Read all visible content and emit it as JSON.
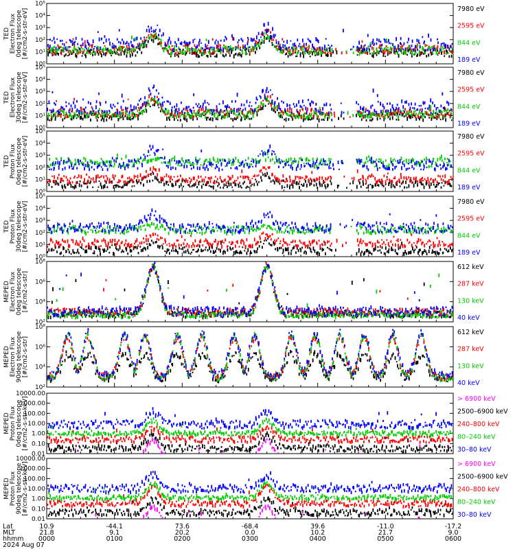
{
  "chart_data": [
    {
      "type": "scatter",
      "ylabel": [
        "TED",
        "Electron Flux",
        "0deg telescope",
        "[#/cm2-s-str-eV]"
      ],
      "yscale": "log",
      "ylim": [
        1,
        100000
      ],
      "yticks": [
        "10⁰",
        "10¹",
        "10²",
        "10³",
        "10⁴",
        "10⁵"
      ],
      "series": [
        {
          "name": "7980 eV",
          "color": "#000000",
          "baseline": 0.9,
          "noise": 0.3,
          "peak": 2.2
        },
        {
          "name": "2595 eV",
          "color": "#ff0000",
          "baseline": 1.2,
          "noise": 0.35,
          "peak": 2.6
        },
        {
          "name": "844 eV",
          "color": "#00cc00",
          "baseline": 1.1,
          "noise": 0.3,
          "peak": 2.4
        },
        {
          "name": "189 eV",
          "color": "#0000ff",
          "baseline": 1.6,
          "noise": 0.5,
          "peak": 3.0
        }
      ]
    },
    {
      "type": "scatter",
      "ylabel": [
        "TED",
        "Electron Flux",
        "30deg telescope",
        "[#/cm2-s-str-eV]"
      ],
      "yscale": "log",
      "ylim": [
        1,
        100000
      ],
      "yticks": [
        "10⁰",
        "10¹",
        "10²",
        "10³",
        "10⁴",
        "10⁵"
      ],
      "series": [
        {
          "name": "7980 eV",
          "color": "#000000",
          "baseline": 0.9,
          "noise": 0.3,
          "peak": 2.1
        },
        {
          "name": "2595 eV",
          "color": "#ff0000",
          "baseline": 1.2,
          "noise": 0.35,
          "peak": 2.5
        },
        {
          "name": "844 eV",
          "color": "#00cc00",
          "baseline": 1.1,
          "noise": 0.3,
          "peak": 2.3
        },
        {
          "name": "189 eV",
          "color": "#0000ff",
          "baseline": 1.7,
          "noise": 0.5,
          "peak": 3.0
        }
      ]
    },
    {
      "type": "scatter",
      "ylabel": [
        "TED",
        "Proton Flux",
        "0deg telescope",
        "[#/cm2-s-str-eV]"
      ],
      "yscale": "log",
      "ylim": [
        1,
        100000
      ],
      "yticks": [
        "10⁰",
        "10¹",
        "10²",
        "10³",
        "10⁴",
        "10⁵"
      ],
      "series": [
        {
          "name": "7980 eV",
          "color": "#000000",
          "baseline": 0.6,
          "noise": 0.3,
          "peak": 1.2
        },
        {
          "name": "2595 eV",
          "color": "#ff0000",
          "baseline": 1.0,
          "noise": 0.3,
          "peak": 1.8
        },
        {
          "name": "844 eV",
          "color": "#00cc00",
          "baseline": 2.4,
          "noise": 0.35,
          "peak": 2.9
        },
        {
          "name": "189 eV",
          "color": "#0000ff",
          "baseline": 2.2,
          "noise": 0.4,
          "peak": 3.5
        }
      ]
    },
    {
      "type": "scatter",
      "ylabel": [
        "TED",
        "Proton Flux",
        "30deg telescope",
        "[#/cm2-s-str-eV]"
      ],
      "yscale": "log",
      "ylim": [
        1,
        100000
      ],
      "yticks": [
        "10⁰",
        "10¹",
        "10²",
        "10³",
        "10⁴",
        "10⁵"
      ],
      "series": [
        {
          "name": "7980 eV",
          "color": "#000000",
          "baseline": 0.5,
          "noise": 0.3,
          "peak": 1.2
        },
        {
          "name": "2595 eV",
          "color": "#ff0000",
          "baseline": 1.1,
          "noise": 0.3,
          "peak": 1.8
        },
        {
          "name": "844 eV",
          "color": "#00cc00",
          "baseline": 2.2,
          "noise": 0.3,
          "peak": 2.6
        },
        {
          "name": "189 eV",
          "color": "#0000ff",
          "baseline": 2.4,
          "noise": 0.4,
          "peak": 3.6
        }
      ]
    },
    {
      "type": "scatter",
      "ylabel": [
        "MEPED",
        "Electron Flux",
        "0deg telescope",
        "[#/cm2-s-str]"
      ],
      "yscale": "log",
      "ylim": [
        10,
        100000000
      ],
      "yticks": [
        "10²",
        "10⁴",
        "10⁶",
        "10⁸"
      ],
      "series": [
        {
          "name": "612 keV",
          "color": "#000000",
          "baseline": 1.9,
          "noise": 0.4,
          "peak": 7.3
        },
        {
          "name": "287 keV",
          "color": "#ff0000",
          "baseline": 2.1,
          "noise": 0.4,
          "peak": 7.4
        },
        {
          "name": "130 keV",
          "color": "#00cc00",
          "baseline": 1.8,
          "noise": 0.3,
          "peak": 7.5
        },
        {
          "name": "40 keV",
          "color": "#0000ff",
          "baseline": 2.2,
          "noise": 0.5,
          "peak": 7.6
        }
      ]
    },
    {
      "type": "scatter",
      "ylabel": [
        "MEPED",
        "Electron Flux",
        "90deg telescope",
        "[#/cm2-s-str]"
      ],
      "yscale": "log",
      "ylim": [
        10,
        100000000
      ],
      "yticks": [
        "10²",
        "10⁴",
        "10⁶",
        "10⁸"
      ],
      "series": [
        {
          "name": "612 keV",
          "color": "#000000",
          "baseline": 2.0,
          "noise": 0.4,
          "peak": 4.8
        },
        {
          "name": "287 keV",
          "color": "#ff0000",
          "baseline": 2.2,
          "noise": 0.4,
          "peak": 6.8
        },
        {
          "name": "130 keV",
          "color": "#00cc00",
          "baseline": 2.0,
          "noise": 0.3,
          "peak": 7.0
        },
        {
          "name": "40 keV",
          "color": "#0000ff",
          "baseline": 2.3,
          "noise": 0.5,
          "peak": 7.2
        }
      ]
    },
    {
      "type": "scatter",
      "ylabel": [
        "MEPED",
        "Proton Flux",
        "0deg telescope",
        "[#/cm2-s-str-keV]"
      ],
      "yscale": "log",
      "ylim": [
        0.01,
        10000
      ],
      "yticks": [
        "0.01",
        "0.10",
        "1.00",
        "10.00",
        "100.00",
        "1000.00",
        "10000.00"
      ],
      "series": [
        {
          "name": "> 6900 keV",
          "color": "#ff00ff",
          "baseline": -2.5,
          "noise": 0.2,
          "peak": -0.7
        },
        {
          "name": "2500–6900 keV",
          "color": "#000000",
          "baseline": -1.5,
          "noise": 0.3,
          "peak": -0.2
        },
        {
          "name": "240–800 keV",
          "color": "#ff0000",
          "baseline": -0.6,
          "noise": 0.3,
          "peak": 0.6
        },
        {
          "name": "80–240 keV",
          "color": "#00cc00",
          "baseline": 0.0,
          "noise": 0.2,
          "peak": 1.3
        },
        {
          "name": "30–80 keV",
          "color": "#0000ff",
          "baseline": 0.9,
          "noise": 0.4,
          "peak": 2.2
        }
      ]
    },
    {
      "type": "scatter",
      "ylabel": [
        "MEPED",
        "Proton Flux",
        "90deg telescope",
        "[#/cm2-s-str-keV]"
      ],
      "yscale": "log",
      "ylim": [
        0.01,
        10000
      ],
      "yticks": [
        "0.01",
        "0.10",
        "1.00",
        "10.00",
        "100.00",
        "1000.00",
        "10000.00"
      ],
      "series": [
        {
          "name": "> 6900 keV",
          "color": "#ff00ff",
          "baseline": -2.5,
          "noise": 0.2,
          "peak": -0.8
        },
        {
          "name": "2500–6900 keV",
          "color": "#000000",
          "baseline": -1.4,
          "noise": 0.3,
          "peak": -0.1
        },
        {
          "name": "240–800 keV",
          "color": "#ff0000",
          "baseline": -0.5,
          "noise": 0.3,
          "peak": 1.2
        },
        {
          "name": "80–240 keV",
          "color": "#00cc00",
          "baseline": 0.1,
          "noise": 0.2,
          "peak": 1.5
        },
        {
          "name": "30–80 keV",
          "color": "#0000ff",
          "baseline": 1.0,
          "noise": 0.4,
          "peak": 2.4
        }
      ]
    }
  ],
  "x_axis": {
    "row_labels": [
      "Lat",
      "MLT",
      "hhmm"
    ],
    "date": "2024 Aug 07",
    "ticks": [
      {
        "lat": "10.9",
        "mlt": "21.8",
        "hhmm": "0000"
      },
      {
        "lat": "-44.1",
        "mlt": "9.1",
        "hhmm": "0100"
      },
      {
        "lat": "73.6",
        "mlt": "20.2",
        "hhmm": "0200"
      },
      {
        "lat": "-68.4",
        "mlt": "0.0",
        "hhmm": "0300"
      },
      {
        "lat": "39.6",
        "mlt": "10.2",
        "hhmm": "0400"
      },
      {
        "lat": "-11.0",
        "mlt": "21.7",
        "hhmm": "0500"
      },
      {
        "lat": "-17.2",
        "mlt": "9.0",
        "hhmm": "0600"
      }
    ]
  }
}
